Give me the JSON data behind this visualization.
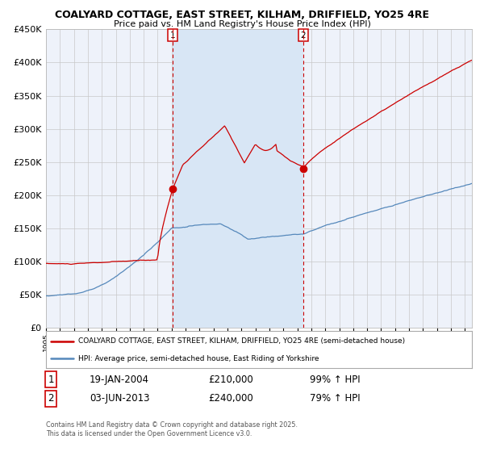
{
  "title": "COALYARD COTTAGE, EAST STREET, KILHAM, DRIFFIELD, YO25 4RE",
  "subtitle": "Price paid vs. HM Land Registry's House Price Index (HPI)",
  "legend_line1": "COALYARD COTTAGE, EAST STREET, KILHAM, DRIFFIELD, YO25 4RE (semi-detached house)",
  "legend_line2": "HPI: Average price, semi-detached house, East Riding of Yorkshire",
  "transaction1_date": "19-JAN-2004",
  "transaction1_price": "£210,000",
  "transaction1_hpi": "99% ↑ HPI",
  "transaction2_date": "03-JUN-2013",
  "transaction2_price": "£240,000",
  "transaction2_hpi": "79% ↑ HPI",
  "footer": "Contains HM Land Registry data © Crown copyright and database right 2025.\nThis data is licensed under the Open Government Licence v3.0.",
  "red_color": "#cc0000",
  "blue_color": "#5588bb",
  "bg_color": "#eef2fa",
  "shaded_color": "#d8e6f5",
  "grid_color": "#c8c8c8",
  "ylim": [
    0,
    450000
  ],
  "x_start_year": 1995,
  "x_end_year": 2025,
  "transaction1_year": 2004.05,
  "transaction2_year": 2013.42,
  "t1_price_val": 210000,
  "t2_price_val": 240000
}
